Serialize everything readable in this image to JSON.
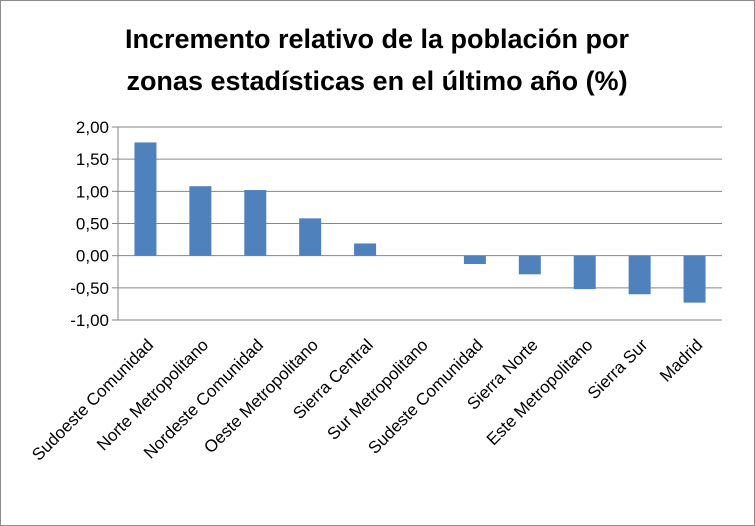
{
  "chart_data": {
    "type": "bar",
    "title_lines": [
      "Incremento relativo de la población por",
      "zonas estadísticas en el último año (%)"
    ],
    "categories": [
      "Sudoeste Comunidad",
      "Norte Metropolitano",
      "Nordeste Comunidad",
      "Oeste Metropolitano",
      "Sierra Central",
      "Sur Metropolitano",
      "Sudeste Comunidad",
      "Sierra Norte",
      "Este Metropolitano",
      "Sierra Sur",
      "Madrid"
    ],
    "values": [
      1.76,
      1.08,
      1.02,
      0.58,
      0.19,
      0.0,
      -0.13,
      -0.29,
      -0.52,
      -0.6,
      -0.73
    ],
    "ylim": [
      -1.0,
      2.0
    ],
    "yticks": [
      "2,00",
      "1,50",
      "1,00",
      "0,50",
      "0,00",
      "-0,50",
      "-1,00"
    ],
    "grid": true,
    "bar_color": "#4f81bd"
  }
}
